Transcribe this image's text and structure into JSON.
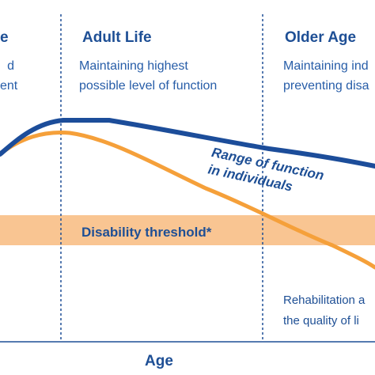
{
  "stages": {
    "early": {
      "title_fragment": "e",
      "desc_line1": "d",
      "desc_line2": "ent"
    },
    "adult": {
      "title": "Adult Life",
      "desc_line1": "Maintaining highest",
      "desc_line2": "possible level of function"
    },
    "older": {
      "title": "Older Age",
      "desc_line1": "Maintaining ind",
      "desc_line2": "preventing disa"
    }
  },
  "curve_label": {
    "line1": "Range of function",
    "line2": "in individuals"
  },
  "threshold_label": "Disability threshold*",
  "rehab": {
    "line1": "Rehabilitation a",
    "line2": "the quality of li"
  },
  "x_axis_label": "Age",
  "colors": {
    "upper_curve": "#1c4d9a",
    "lower_curve": "#f5a03a",
    "threshold_band": "#f9c592",
    "text": "#1e4f95"
  }
}
